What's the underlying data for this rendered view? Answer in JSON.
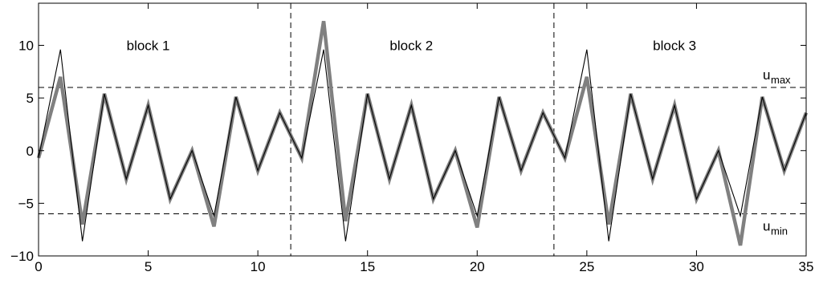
{
  "chart_data": {
    "type": "line",
    "title": "",
    "xlabel": "",
    "ylabel": "",
    "xlim": [
      0,
      35
    ],
    "ylim": [
      -10,
      14
    ],
    "grid": false,
    "x_ticks": [
      0,
      5,
      10,
      15,
      20,
      25,
      30,
      35
    ],
    "x_tick_labels": [
      "0",
      "5",
      "10",
      "15",
      "20",
      "25",
      "30",
      "35"
    ],
    "y_ticks": [
      -10,
      -5,
      0,
      5,
      10
    ],
    "y_tick_labels": [
      "−10",
      "−5",
      "0",
      "5",
      "10"
    ],
    "x": [
      0,
      1,
      2,
      3,
      4,
      5,
      6,
      7,
      8,
      9,
      10,
      11,
      12,
      13,
      14,
      15,
      16,
      17,
      18,
      19,
      20,
      21,
      22,
      23,
      24,
      25,
      26,
      27,
      28,
      29,
      30,
      31,
      32,
      33,
      34,
      35
    ],
    "series": [
      {
        "values": [
          -0.7,
          9.6,
          -8.6,
          5.4,
          -2.7,
          4.3,
          -4.6,
          0,
          -6.2,
          5.1,
          -1.9,
          3.6,
          -0.7,
          9.6,
          -8.6,
          5.4,
          -2.7,
          4.3,
          -4.6,
          0,
          -6.2,
          5.1,
          -1.9,
          3.6,
          -0.7,
          9.6,
          -8.6,
          5.4,
          -2.7,
          4.3,
          -4.6,
          0,
          -6.2,
          5.1,
          -1.9,
          3.6
        ],
        "color": "#000000",
        "style": "thin"
      },
      {
        "values": [
          -0.7,
          7.0,
          -7.0,
          5.4,
          -2.7,
          4.3,
          -4.6,
          0,
          -7.2,
          5.1,
          -1.9,
          3.6,
          -0.7,
          12.3,
          -6.7,
          5.4,
          -2.7,
          4.3,
          -4.6,
          0,
          -7.3,
          5.1,
          -1.9,
          3.6,
          -0.7,
          7.0,
          -7.0,
          5.4,
          -2.7,
          4.3,
          -4.6,
          0,
          -9.0,
          5.1,
          -1.9,
          3.6
        ],
        "color": "#808080",
        "style": "thick"
      }
    ],
    "hlines": [
      {
        "y": 6,
        "style": "dashed",
        "label_main": "u",
        "label_sub": "max"
      },
      {
        "y": -6,
        "style": "dashed",
        "label_main": "u",
        "label_sub": "min"
      }
    ],
    "vlines": [
      {
        "x": 11.5,
        "style": "dashed"
      },
      {
        "x": 23.5,
        "style": "dashed"
      }
    ],
    "annotations": [
      {
        "text": "block 1",
        "x": 5.0,
        "y": 10
      },
      {
        "text": "block 2",
        "x": 17.0,
        "y": 10
      },
      {
        "text": "block 3",
        "x": 29.0,
        "y": 10
      }
    ]
  }
}
